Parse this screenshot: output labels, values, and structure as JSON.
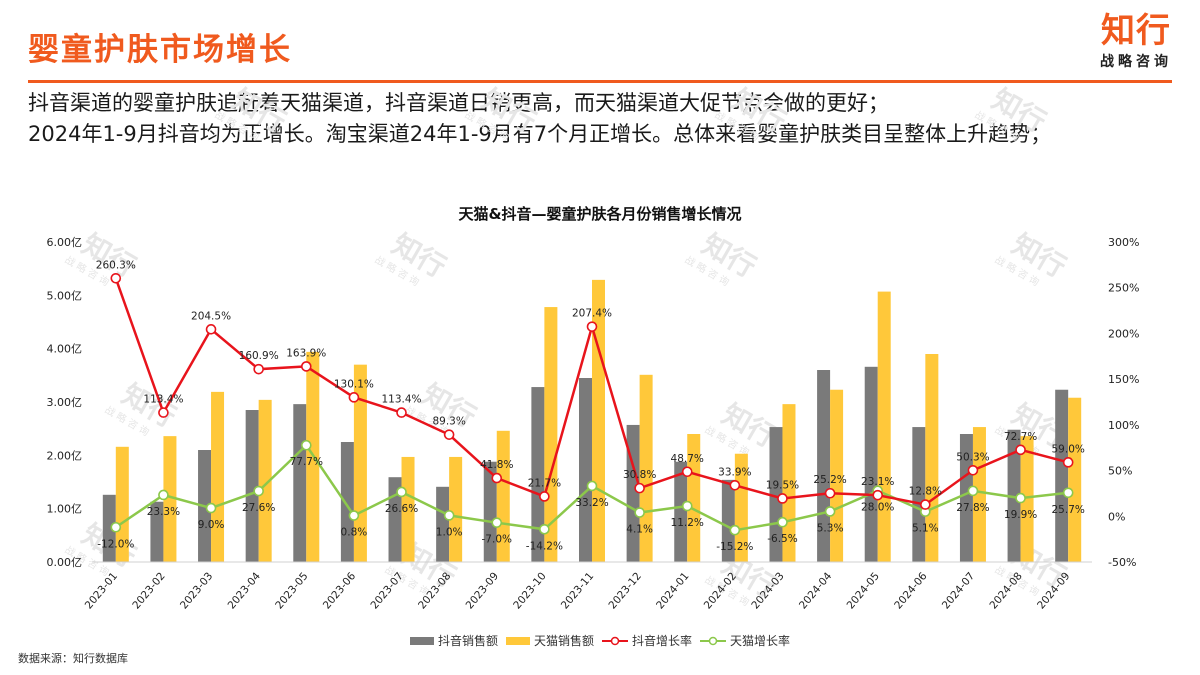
{
  "header": {
    "title": "婴童护肤市场增长",
    "logo_main": "知行",
    "logo_sub": "战略咨询"
  },
  "summary": {
    "line1": "抖音渠道的婴童护肤追赶着天猫渠道，抖音渠道日销更高，而天猫渠道大促节点会做的更好；",
    "line2": "2024年1-9月抖音均为正增长。淘宝渠道24年1-9月有7个月正增长。总体来看婴童护肤类目呈整体上升趋势；"
  },
  "footer": {
    "source": "数据来源：知行数据库"
  },
  "watermark": {
    "main": "知行",
    "sub": "战略咨询"
  },
  "colors": {
    "accent": "#f05a1e",
    "douyin_bar": "#7a7a7a",
    "tmall_bar": "#ffc83a",
    "douyin_line": "#e8141c",
    "tmall_line": "#8cc84b"
  },
  "chart_data": {
    "type": "bar",
    "title": "天猫&抖音—婴童护肤各月份销售增长情况",
    "xlabel": "",
    "ylabel": "",
    "y_left_ticks": [
      "0.00亿",
      "1.00亿",
      "2.00亿",
      "3.00亿",
      "4.00亿",
      "5.00亿",
      "6.00亿"
    ],
    "y_right_ticks": [
      "-50%",
      "0%",
      "50%",
      "100%",
      "150%",
      "200%",
      "250%",
      "300%"
    ],
    "ylim": [
      0,
      6
    ],
    "y2lim": [
      -50,
      300
    ],
    "grid": false,
    "legend_position": "bottom",
    "categories": [
      "2023-01",
      "2023-02",
      "2023-03",
      "2023-04",
      "2023-05",
      "2023-06",
      "2023-07",
      "2023-08",
      "2023-09",
      "2023-10",
      "2023-11",
      "2023-12",
      "2024-01",
      "2024-02",
      "2024-03",
      "2024-04",
      "2024-05",
      "2024-06",
      "2024-07",
      "2024-08",
      "2024-09"
    ],
    "series": [
      {
        "name": "抖音销售额",
        "type": "bar",
        "axis": "left",
        "unit": "亿",
        "values": [
          1.26,
          1.13,
          2.1,
          2.85,
          2.96,
          2.25,
          1.59,
          1.41,
          1.88,
          3.28,
          3.45,
          2.57,
          1.88,
          1.54,
          2.53,
          3.6,
          3.66,
          2.53,
          2.4,
          2.48,
          3.23
        ]
      },
      {
        "name": "天猫销售额",
        "type": "bar",
        "axis": "left",
        "unit": "亿",
        "values": [
          2.16,
          2.36,
          3.19,
          3.04,
          3.94,
          3.7,
          1.97,
          1.97,
          2.46,
          4.78,
          5.29,
          3.51,
          2.4,
          2.03,
          2.96,
          3.23,
          5.07,
          3.9,
          2.53,
          2.36,
          3.08
        ]
      },
      {
        "name": "抖音增长率",
        "type": "line",
        "axis": "right",
        "unit": "%",
        "values": [
          260.3,
          113.4,
          204.5,
          160.9,
          163.9,
          130.1,
          113.4,
          89.3,
          41.8,
          21.7,
          207.4,
          30.8,
          48.7,
          33.9,
          19.5,
          25.2,
          23.1,
          12.8,
          50.3,
          72.7,
          59.0
        ],
        "labels": [
          "260.3%",
          "113.4%",
          "204.5%",
          "160.9%",
          "163.9%",
          "130.1%",
          "113.4%",
          "89.3%",
          "41.8%",
          "21.7%",
          "207.4%",
          "30.8%",
          "48.7%",
          "33.9%",
          "19.5%",
          "25.2%",
          "23.1%",
          "12.8%",
          "50.3%",
          "72.7%",
          "59.0%"
        ]
      },
      {
        "name": "天猫增长率",
        "type": "line",
        "axis": "right",
        "unit": "%",
        "values": [
          -12.0,
          23.3,
          9.0,
          27.6,
          77.7,
          0.8,
          26.6,
          1.0,
          -7.0,
          -14.2,
          33.2,
          4.1,
          11.2,
          -15.2,
          -6.5,
          5.3,
          28.0,
          5.1,
          27.8,
          19.9,
          25.7
        ],
        "labels": [
          "-12.0%",
          "23.3%",
          "9.0%",
          "27.6%",
          "77.7%",
          "0.8%",
          "26.6%",
          "1.0%",
          "-7.0%",
          "-14.2%",
          "33.2%",
          "4.1%",
          "11.2%",
          "-15.2%",
          "-6.5%",
          "5.3%",
          "28.0%",
          "5.1%",
          "27.8%",
          "19.9%",
          "25.7%"
        ]
      }
    ],
    "legend": [
      "抖音销售额",
      "天猫销售额",
      "抖音增长率",
      "天猫增长率"
    ]
  }
}
